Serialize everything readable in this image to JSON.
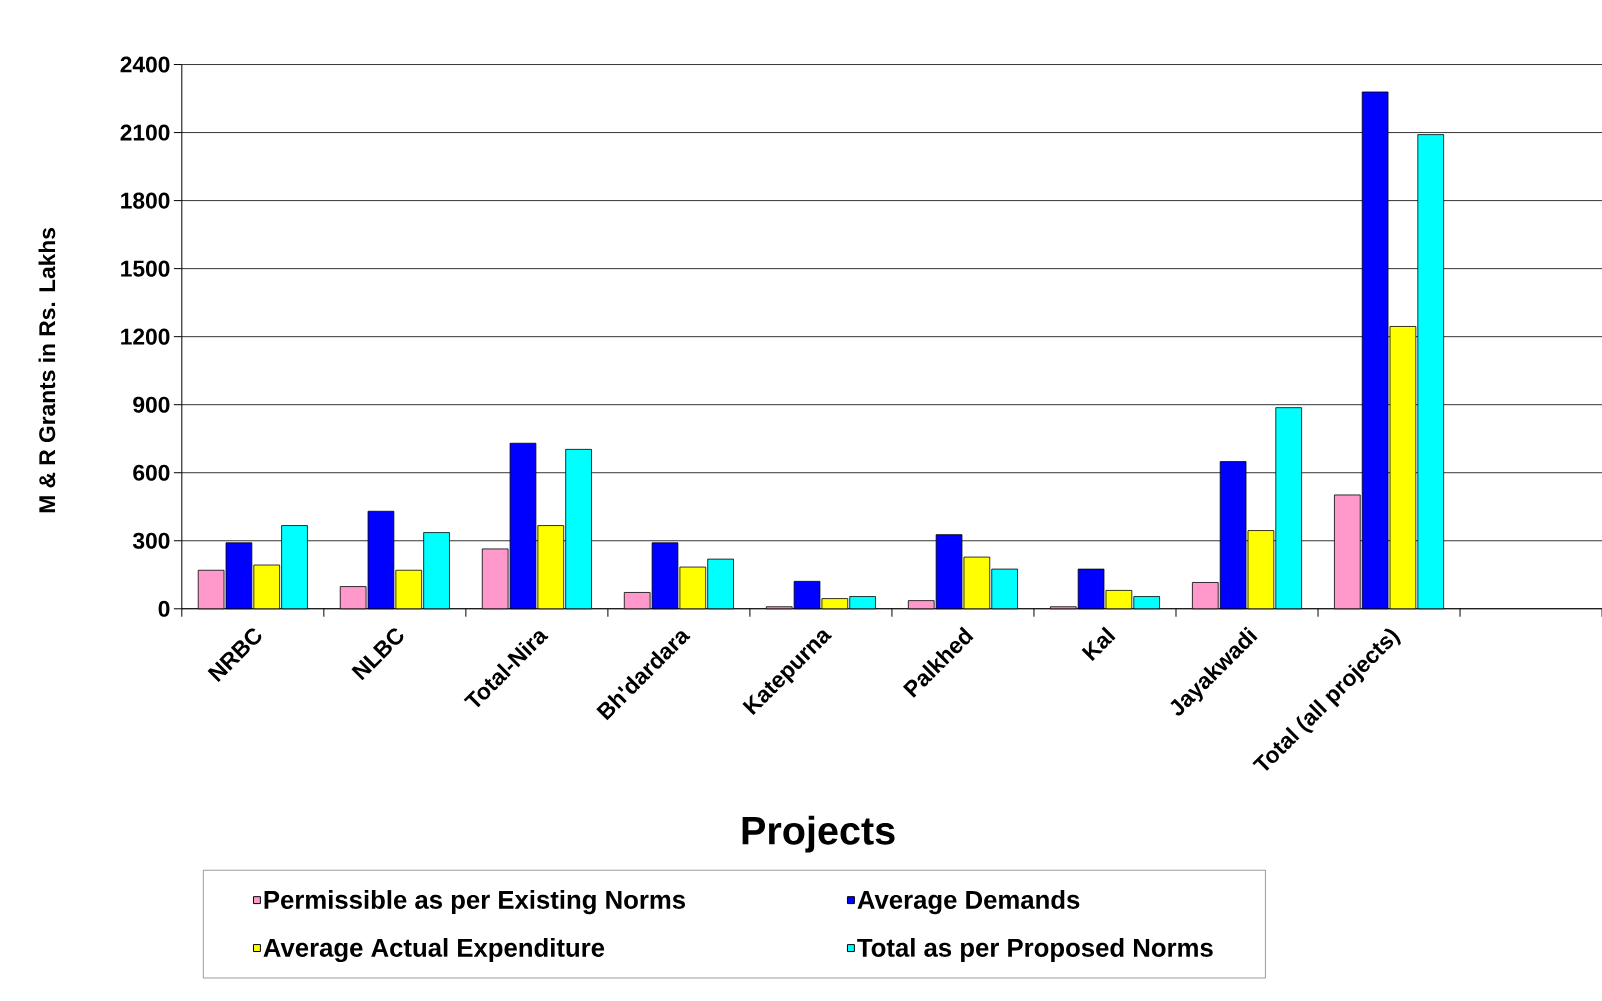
{
  "chart_data": {
    "type": "bar",
    "xlabel": "Projects",
    "ylabel": "M & R Grants in Rs. Lakhs",
    "categories": [
      "NRBC",
      "NLBC",
      "Total-Nira",
      "Bh'dardara",
      "Katepurna",
      "Palkhed",
      "Kal",
      "Jayakwadi",
      "Total (all projects)"
    ],
    "series": [
      {
        "name": "Permissible as per Existing Norms",
        "color": "#ff99cc",
        "values": [
          170,
          98,
          264,
          72,
          9,
          36,
          9,
          116,
          502
        ]
      },
      {
        "name": "Average Demands",
        "color": "#0000ff",
        "values": [
          291,
          430,
          730,
          291,
          121,
          327,
          175,
          649,
          2279
        ]
      },
      {
        "name": "Average Actual  Expenditure",
        "color": "#ffff00",
        "values": [
          193,
          170,
          367,
          184,
          45,
          228,
          81,
          345,
          1245
        ]
      },
      {
        "name": "Total  as per Proposed Norms",
        "color": "#00ffff",
        "values": [
          367,
          336,
          703,
          219,
          54,
          175,
          54,
          887,
          2091
        ]
      }
    ],
    "ylim": [
      0,
      2400
    ],
    "yticks": [
      0,
      300,
      600,
      900,
      1200,
      1500,
      1800,
      2100,
      2400
    ],
    "grid": "y",
    "legend": "bottom"
  }
}
